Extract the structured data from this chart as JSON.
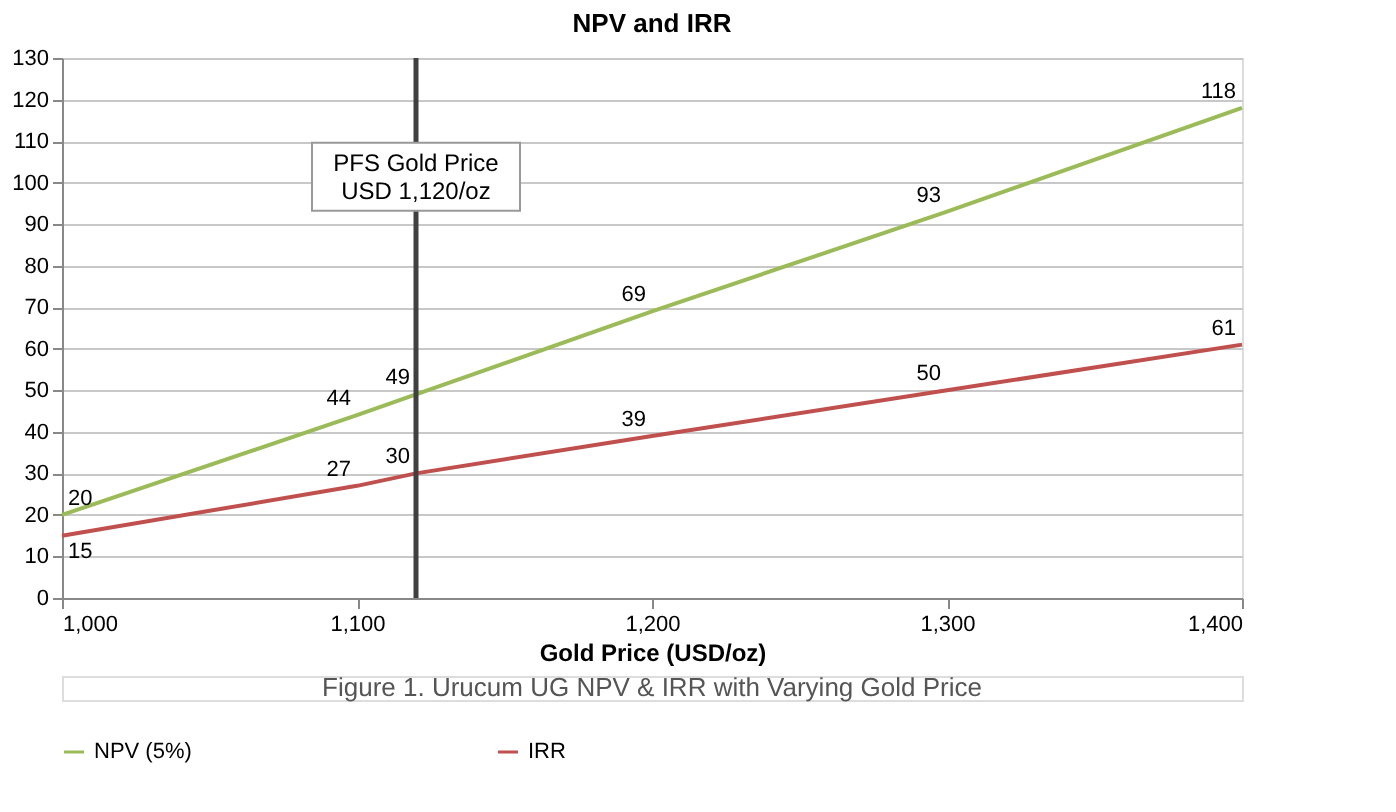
{
  "chart_data": {
    "type": "line",
    "title": "NPV and IRR",
    "xlabel": "Gold Price (USD/oz)",
    "x": [
      1000,
      1100,
      1120,
      1200,
      1300,
      1400
    ],
    "series": [
      {
        "name": "NPV (5%)",
        "color": "#9bbb59",
        "values": [
          20,
          44,
          49,
          69,
          93,
          118
        ]
      },
      {
        "name": "IRR",
        "color": "#c0504d",
        "values": [
          15,
          27,
          30,
          39,
          50,
          61
        ]
      }
    ],
    "xlim": [
      1000,
      1400
    ],
    "xticks": [
      {
        "value": 1000,
        "label": "1,000"
      },
      {
        "value": 1100,
        "label": "1,100"
      },
      {
        "value": 1200,
        "label": "1,200"
      },
      {
        "value": 1300,
        "label": "1,300"
      },
      {
        "value": 1400,
        "label": "1,400"
      }
    ],
    "ylim": [
      0,
      130
    ],
    "yticks": [
      0,
      10,
      20,
      30,
      40,
      50,
      60,
      70,
      80,
      90,
      100,
      110,
      120,
      130
    ],
    "ref_lines": [
      {
        "axis": "x",
        "value": 1120,
        "label": "PFS Gold Price\nUSD 1,120/oz",
        "color": "#404040"
      }
    ],
    "annotations": [
      "Figure 1. Urucum UG NPV & IRR with Varying Gold Price"
    ],
    "data_labels": true,
    "grid": "y",
    "legend": "bottom",
    "marker": "none",
    "line_style": "solid"
  }
}
